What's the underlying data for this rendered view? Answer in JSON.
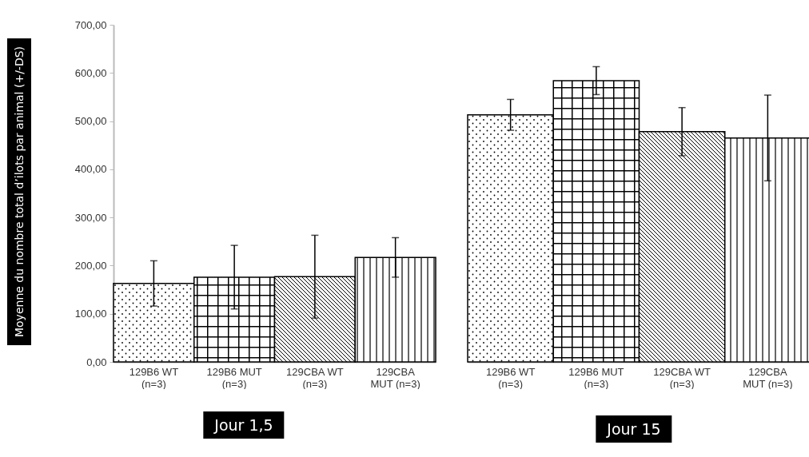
{
  "chart_data": [
    {
      "type": "bar",
      "title": "Jour 1,5",
      "ylabel": "Moyenne du nombre total d’ilots par animal (+/-DS)",
      "categories": [
        "129B6 WT (n=3)",
        "129B6 MUT (n=3)",
        "129CBA WT (n=3)",
        "129CBA MUT (n=3)"
      ],
      "values": [
        163,
        176,
        177,
        217
      ],
      "errors": [
        47,
        66,
        86,
        41
      ],
      "colors": [
        "#000000",
        "#000000",
        "#000000",
        "#000000"
      ],
      "ylim": [
        0,
        700
      ],
      "yticks": [
        {
          "value": 0,
          "label": "0,00"
        },
        {
          "value": 100,
          "label": "100,00"
        },
        {
          "value": 200,
          "label": "200,00"
        },
        {
          "value": 300,
          "label": "300,00"
        },
        {
          "value": 400,
          "label": "400,00"
        },
        {
          "value": 500,
          "label": "500,00"
        },
        {
          "value": 600,
          "label": "600,00"
        },
        {
          "value": 700,
          "label": "700,00"
        }
      ]
    },
    {
      "type": "bar",
      "title": "Jour 15",
      "categories": [
        "129B6 WT (n=3)",
        "129B6 MUT (n=3)",
        "129CBA WT (n=3)",
        "129CBA MUT (n=3)"
      ],
      "values": [
        513,
        584,
        478,
        465
      ],
      "errors": [
        32,
        29,
        50,
        89
      ],
      "colors": [
        "#000000",
        "#000000",
        "#000000",
        "#000000"
      ],
      "ylim": [
        0,
        700
      ],
      "tick_labels": "x"
    }
  ]
}
